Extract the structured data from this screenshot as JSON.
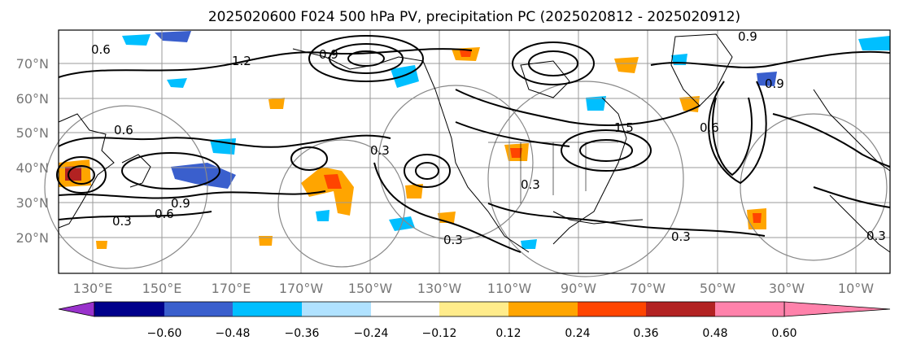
{
  "title": "2025020600 F024 500 hPa PV, precipitation PC (2025020812 - 2025020912)",
  "latitude_labels": [
    "70°N",
    "60°N",
    "50°N",
    "40°N",
    "30°N",
    "20°N"
  ],
  "longitude_labels": [
    "130°E",
    "150°E",
    "170°E",
    "170°W",
    "150°W",
    "130°W",
    "110°W",
    "90°W",
    "70°W",
    "50°W",
    "30°W",
    "10°W"
  ],
  "contour_labels": [
    "0.6",
    "1.2",
    "0.9",
    "0.6",
    "0.3",
    "0.9",
    "0.9",
    "0.6",
    "0.3",
    "0.3",
    "0.3",
    "0.3",
    "1.5",
    "0.9",
    "0.3",
    "0.6"
  ],
  "colorbar": {
    "tick_labels": [
      "−0.60",
      "−0.48",
      "−0.36",
      "−0.24",
      "−0.12",
      "0.12",
      "0.24",
      "0.36",
      "0.48",
      "0.60"
    ],
    "colors": [
      "#9932cc",
      "#00008b",
      "#3a5fcd",
      "#00bfff",
      "#b0e2ff",
      "#ffffff",
      "#ffec8b",
      "#ffa500",
      "#ff4500",
      "#b22222",
      "#ff82ab"
    ]
  },
  "colors": {
    "land_outline": "#000000",
    "grid": "#9a9a9a",
    "pv_contour": "#000000"
  }
}
